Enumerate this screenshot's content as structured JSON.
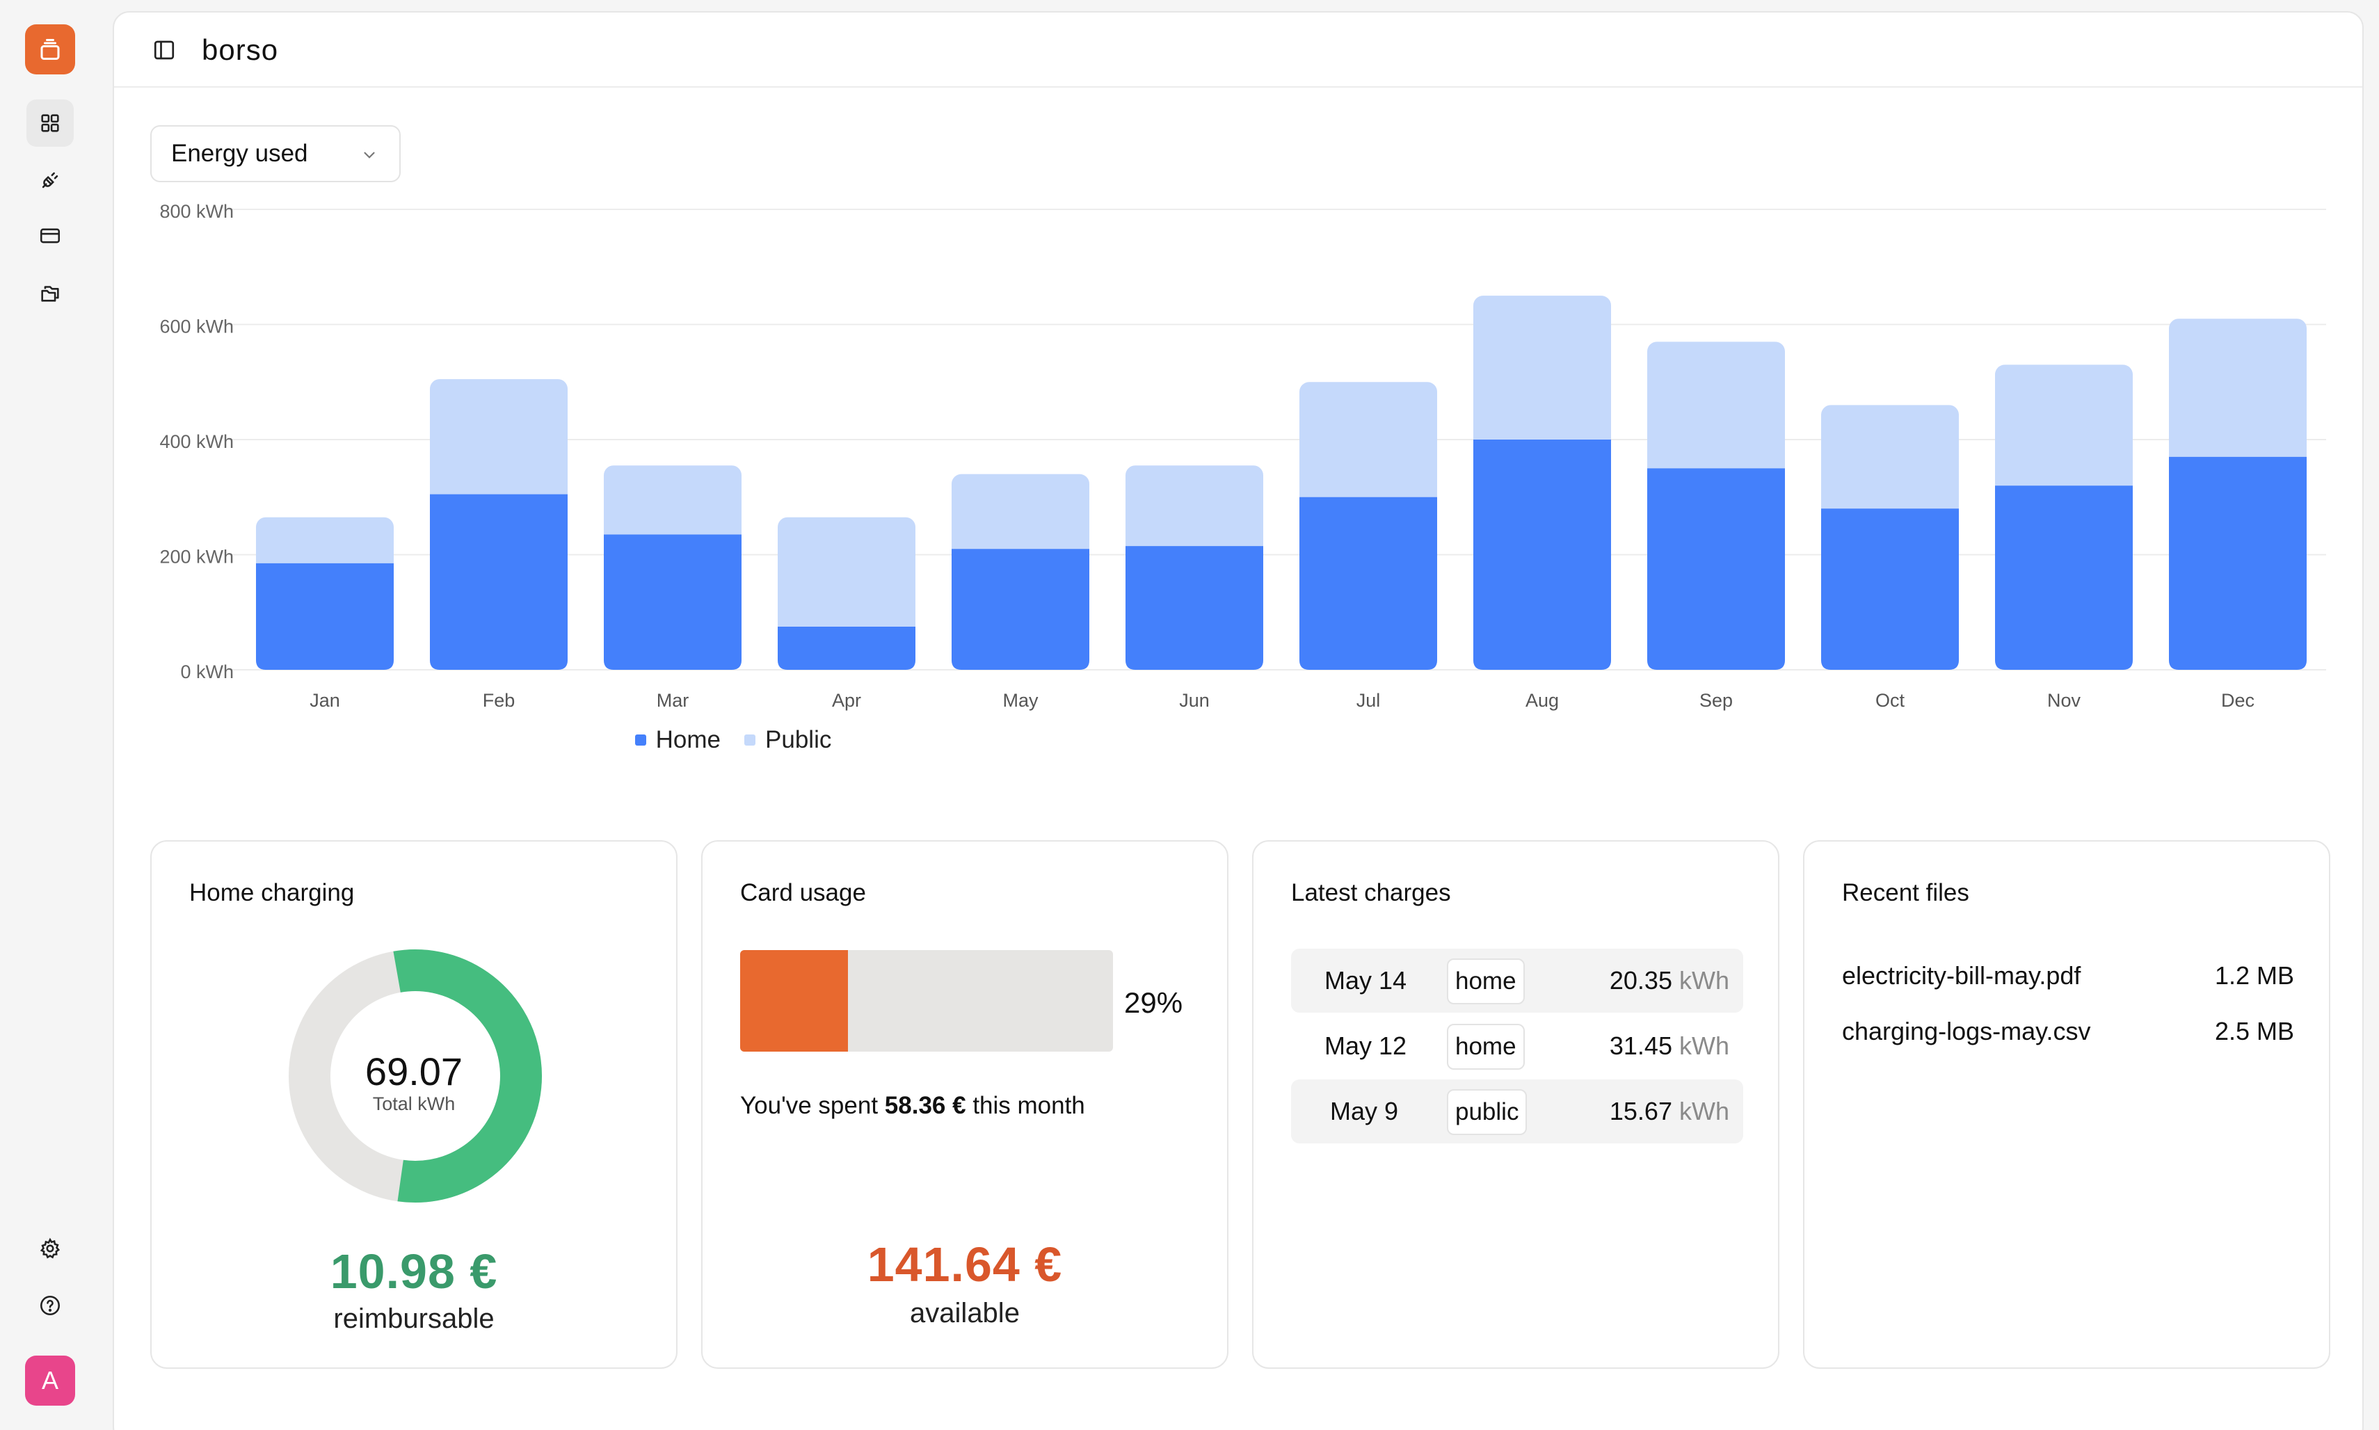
{
  "app": {
    "title": "borso"
  },
  "sidebar": {
    "items": [
      {
        "icon": "dashboard-grid-icon",
        "active": true
      },
      {
        "icon": "plug-icon",
        "active": false
      },
      {
        "icon": "credit-card-icon",
        "active": false
      },
      {
        "icon": "folders-icon",
        "active": false
      }
    ],
    "bottom": [
      {
        "icon": "gear-icon"
      },
      {
        "icon": "help-circle-icon"
      }
    ],
    "avatar_initial": "A"
  },
  "metric_select": {
    "value": "Energy used"
  },
  "colors": {
    "home": "#4480fb",
    "public": "#c5d9fb",
    "accent": "#e8692f",
    "green": "#45bd7f",
    "money_green": "#3a9a6b",
    "money_orange": "#d9572b"
  },
  "chart_data": {
    "type": "bar",
    "stacked": true,
    "categories": [
      "Jan",
      "Feb",
      "Mar",
      "Apr",
      "May",
      "Jun",
      "Jul",
      "Aug",
      "Sep",
      "Oct",
      "Nov",
      "Dec"
    ],
    "series": [
      {
        "name": "Home",
        "values": [
          185,
          305,
          235,
          75,
          210,
          215,
          300,
          400,
          350,
          280,
          320,
          370
        ]
      },
      {
        "name": "Public",
        "values": [
          80,
          200,
          120,
          190,
          130,
          140,
          200,
          250,
          220,
          180,
          210,
          240
        ]
      }
    ],
    "yticks": [
      "0 kWh",
      "200 kWh",
      "400 kWh",
      "600 kWh",
      "800 kWh"
    ],
    "ylim": [
      0,
      800
    ],
    "grid": true,
    "legend": "bottom-center"
  },
  "cards": {
    "home": {
      "title": "Home charging",
      "donut_value": "69.07",
      "donut_label": "Total kWh",
      "donut_fraction": 0.55,
      "amount": "10.98 €",
      "amount_label": "reimbursable"
    },
    "card_usage": {
      "title": "Card usage",
      "percent_text": "29%",
      "percent": 29,
      "spent_prefix": "You've spent",
      "spent_amount": "58.36 €",
      "spent_suffix": "this month",
      "amount": "141.64 €",
      "amount_label": "available"
    },
    "charges": {
      "title": "Latest charges",
      "rows": [
        {
          "date": "May 14",
          "type": "home",
          "value": "20.35",
          "unit": "kWh"
        },
        {
          "date": "May 12",
          "type": "home",
          "value": "31.45",
          "unit": "kWh"
        },
        {
          "date": "May 9",
          "type": "public",
          "value": "15.67",
          "unit": "kWh"
        }
      ]
    },
    "files": {
      "title": "Recent files",
      "rows": [
        {
          "name": "electricity-bill-may.pdf",
          "size": "1.2 MB"
        },
        {
          "name": "charging-logs-may.csv",
          "size": "2.5 MB"
        }
      ]
    }
  }
}
